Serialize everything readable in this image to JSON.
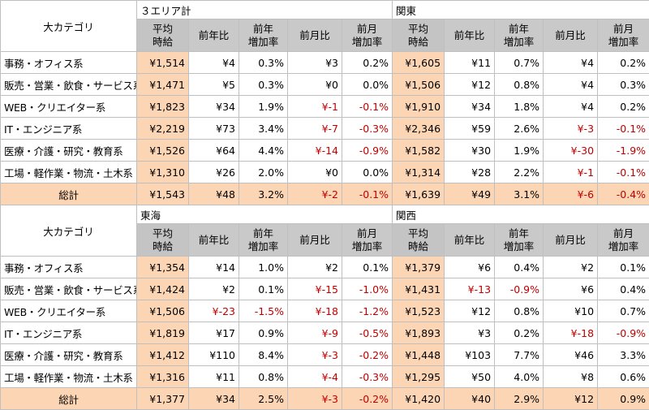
{
  "blocks": [
    {
      "category_header": "大カテゴリ",
      "regions": [
        "３エリア計",
        "関東"
      ],
      "columns": [
        {
          "line1": "平均",
          "line2": "時給"
        },
        {
          "line1": "前年比",
          "line2": ""
        },
        {
          "line1": "前年",
          "line2": "増加率"
        },
        {
          "line1": "前月比",
          "line2": ""
        },
        {
          "line1": "前月",
          "line2": "増加率"
        }
      ],
      "rows": [
        {
          "label": "事務・オフィス系",
          "a": [
            "¥1,514",
            "¥4",
            "0.3%",
            "¥3",
            "0.2%"
          ],
          "b": [
            "¥1,605",
            "¥11",
            "0.7%",
            "¥4",
            "0.2%"
          ]
        },
        {
          "label": "販売・営業・飲食・サービス系",
          "a": [
            "¥1,471",
            "¥5",
            "0.3%",
            "¥0",
            "0.0%"
          ],
          "b": [
            "¥1,506",
            "¥12",
            "0.8%",
            "¥4",
            "0.3%"
          ]
        },
        {
          "label": "WEB・クリエイター系",
          "a": [
            "¥1,823",
            "¥34",
            "1.9%",
            "¥-1",
            "-0.1%"
          ],
          "b": [
            "¥1,910",
            "¥34",
            "1.8%",
            "¥4",
            "0.2%"
          ]
        },
        {
          "label": "IT・エンジニア系",
          "a": [
            "¥2,219",
            "¥73",
            "3.4%",
            "¥-7",
            "-0.3%"
          ],
          "b": [
            "¥2,346",
            "¥59",
            "2.6%",
            "¥-3",
            "-0.1%"
          ]
        },
        {
          "label": "医療・介護・研究・教育系",
          "a": [
            "¥1,526",
            "¥64",
            "4.4%",
            "¥-14",
            "-0.9%"
          ],
          "b": [
            "¥1,582",
            "¥30",
            "1.9%",
            "¥-30",
            "-1.9%"
          ]
        },
        {
          "label": "工場・軽作業・物流・土木系",
          "a": [
            "¥1,310",
            "¥26",
            "2.0%",
            "¥0",
            "0.0%"
          ],
          "b": [
            "¥1,314",
            "¥28",
            "2.2%",
            "¥-1",
            "-0.1%"
          ]
        }
      ],
      "total": {
        "label": "総計",
        "a": [
          "¥1,543",
          "¥48",
          "3.2%",
          "¥-2",
          "-0.1%"
        ],
        "b": [
          "¥1,639",
          "¥49",
          "3.1%",
          "¥-6",
          "-0.4%"
        ]
      }
    },
    {
      "category_header": "大カテゴリ",
      "regions": [
        "東海",
        "関西"
      ],
      "columns": [
        {
          "line1": "平均",
          "line2": "時給"
        },
        {
          "line1": "前年比",
          "line2": ""
        },
        {
          "line1": "前年",
          "line2": "増加率"
        },
        {
          "line1": "前月比",
          "line2": ""
        },
        {
          "line1": "前月",
          "line2": "増加率"
        }
      ],
      "rows": [
        {
          "label": "事務・オフィス系",
          "a": [
            "¥1,354",
            "¥14",
            "1.0%",
            "¥2",
            "0.1%"
          ],
          "b": [
            "¥1,379",
            "¥6",
            "0.4%",
            "¥2",
            "0.1%"
          ]
        },
        {
          "label": "販売・営業・飲食・サービス系",
          "a": [
            "¥1,424",
            "¥2",
            "0.1%",
            "¥-15",
            "-1.0%"
          ],
          "b": [
            "¥1,431",
            "¥-13",
            "-0.9%",
            "¥6",
            "0.4%"
          ]
        },
        {
          "label": "WEB・クリエイター系",
          "a": [
            "¥1,506",
            "¥-23",
            "-1.5%",
            "¥-18",
            "-1.2%"
          ],
          "b": [
            "¥1,523",
            "¥12",
            "0.8%",
            "¥10",
            "0.7%"
          ]
        },
        {
          "label": "IT・エンジニア系",
          "a": [
            "¥1,819",
            "¥17",
            "0.9%",
            "¥-9",
            "-0.5%"
          ],
          "b": [
            "¥1,893",
            "¥3",
            "0.2%",
            "¥-18",
            "-0.9%"
          ]
        },
        {
          "label": "医療・介護・研究・教育系",
          "a": [
            "¥1,412",
            "¥110",
            "8.4%",
            "¥-3",
            "-0.2%"
          ],
          "b": [
            "¥1,448",
            "¥103",
            "7.7%",
            "¥46",
            "3.3%"
          ]
        },
        {
          "label": "工場・軽作業・物流・土木系",
          "a": [
            "¥1,316",
            "¥11",
            "0.8%",
            "¥-4",
            "-0.3%"
          ],
          "b": [
            "¥1,295",
            "¥50",
            "4.0%",
            "¥8",
            "0.6%"
          ]
        }
      ],
      "total": {
        "label": "総計",
        "a": [
          "¥1,377",
          "¥34",
          "2.5%",
          "¥-3",
          "-0.2%"
        ],
        "b": [
          "¥1,420",
          "¥40",
          "2.9%",
          "¥12",
          "0.9%"
        ]
      }
    }
  ],
  "colors": {
    "avg_fill": "#fcd5b4",
    "total_fill": "#fcd5b4",
    "header_fill": "#c9c9c9",
    "grid_line": "#bfbfbf",
    "negative_text": "#c00000"
  }
}
